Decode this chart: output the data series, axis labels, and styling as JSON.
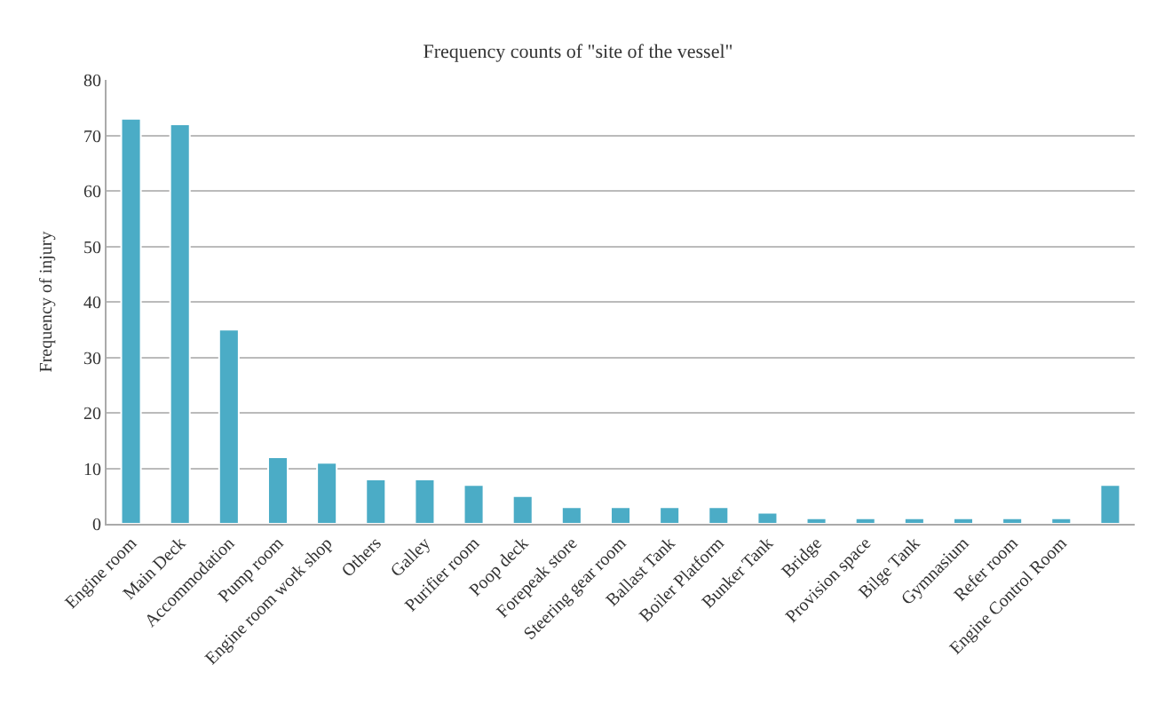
{
  "chart_data": {
    "type": "bar",
    "title": "Frequency counts of \"site of the vessel\"",
    "ylabel": "Frequency of injury",
    "categories": [
      "Engine room",
      "Main Deck",
      "Accommodation",
      "Pump room",
      "Engine room work shop",
      "Others",
      "Galley",
      "Purifier room",
      "Poop deck",
      "Forepeak store",
      "Steering gear room",
      "Ballast Tank",
      "Boiler Platform",
      "Bunker Tank",
      "Bridge",
      "Provision space",
      "Bilge Tank",
      "Gymnasium",
      "Refer room",
      "Engine Control Room",
      null
    ],
    "values": [
      73,
      72,
      35,
      12,
      11,
      8,
      8,
      7,
      5,
      3,
      3,
      3,
      3,
      2,
      1,
      1,
      1,
      1,
      1,
      1,
      7
    ],
    "color": "#4bacc6",
    "ylim": [
      0,
      80
    ],
    "yticks": [
      0,
      10,
      20,
      30,
      40,
      50,
      60,
      70,
      80
    ],
    "grid": "y",
    "legend": false
  }
}
